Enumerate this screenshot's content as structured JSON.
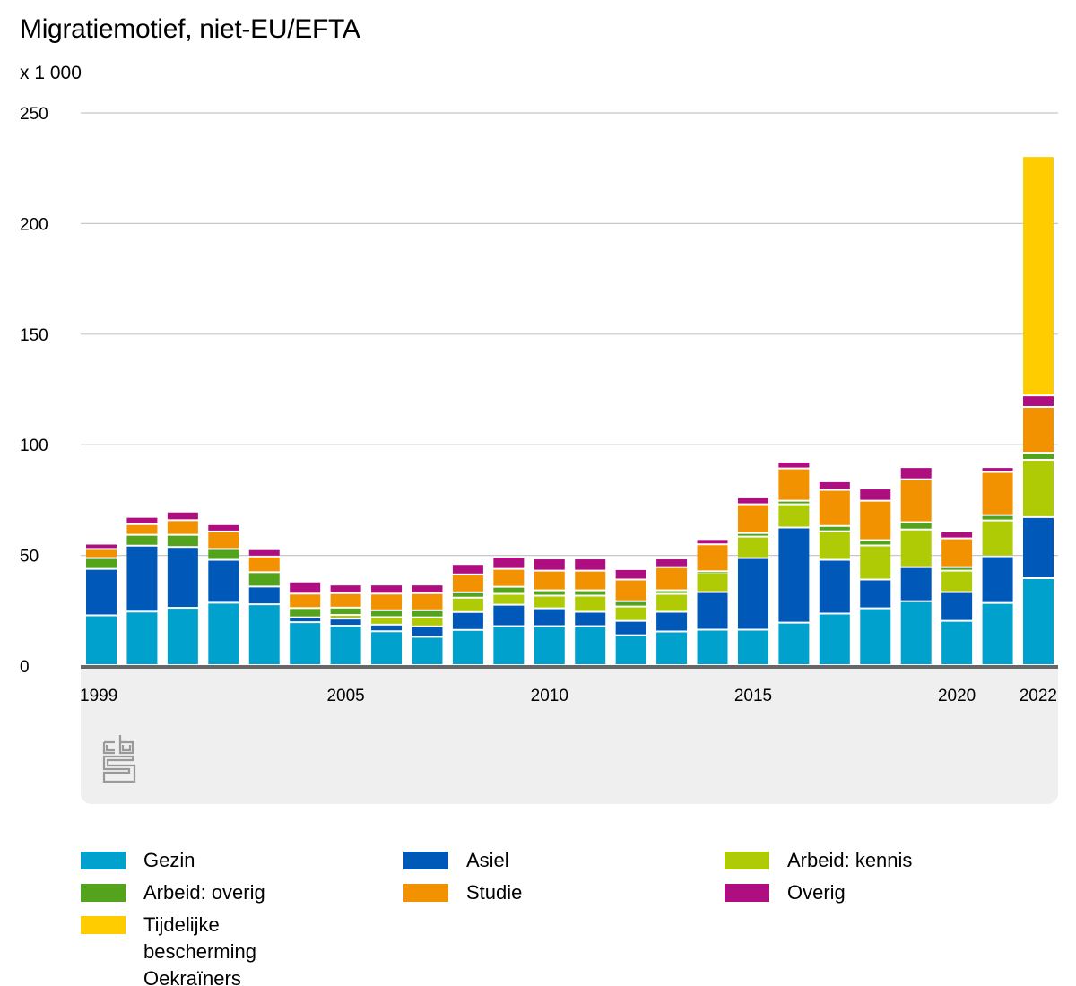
{
  "title": "Migratiemotief, niet-EU/EFTA",
  "unit_label": "x 1 000",
  "logo_text": "cbs",
  "chart_data": {
    "type": "bar",
    "stacked": true,
    "title": "Migratiemotief, niet-EU/EFTA",
    "ylabel": "x 1 000",
    "ylim": [
      0,
      250
    ],
    "yticks": [
      "0",
      "50",
      "100",
      "150",
      "200",
      "250"
    ],
    "grid": true,
    "legend_position": "bottom",
    "x": [
      1999,
      2000,
      2001,
      2002,
      2003,
      2004,
      2005,
      2006,
      2007,
      2008,
      2009,
      2010,
      2011,
      2012,
      2013,
      2014,
      2015,
      2016,
      2017,
      2018,
      2019,
      2020,
      2021,
      2022
    ],
    "xticks": [
      "1999",
      "2005",
      "2010",
      "2015",
      "2020",
      "2022"
    ],
    "series": [
      {
        "name": "Gezin",
        "color": "#00a1cd",
        "values": [
          22.5,
          24.2,
          25.9,
          28.2,
          27.5,
          19.4,
          17.8,
          15.3,
          12.8,
          15.9,
          17.6,
          17.6,
          17.6,
          13.5,
          15.2,
          16.0,
          16.0,
          19.2,
          23.3,
          25.7,
          28.9,
          20.0,
          28.1,
          39.3
        ]
      },
      {
        "name": "Asiel",
        "color": "#0058b8",
        "values": [
          21.0,
          29.8,
          27.5,
          19.4,
          8.0,
          2.2,
          3.2,
          3.0,
          4.7,
          8.1,
          9.7,
          8.1,
          6.5,
          6.5,
          8.9,
          17.0,
          32.4,
          43.0,
          24.3,
          13.0,
          15.4,
          13.0,
          21.1,
          27.6
        ]
      },
      {
        "name": "Arbeid: kennis",
        "color": "#afcb05",
        "values": [
          0,
          0,
          0,
          0,
          0,
          0,
          1.7,
          3.4,
          4.1,
          6.5,
          4.9,
          5.7,
          7.3,
          6.5,
          8.1,
          8.9,
          9.7,
          10.5,
          12.9,
          15.4,
          17.0,
          9.7,
          16.2,
          25.9
        ]
      },
      {
        "name": "Arbeid: overig",
        "color": "#53a31d",
        "values": [
          4.9,
          4.9,
          5.5,
          4.9,
          6.5,
          4.2,
          3.3,
          3.1,
          3.2,
          2.4,
          3.2,
          2.4,
          2.4,
          2.4,
          1.6,
          0.5,
          1.6,
          1.6,
          2.4,
          2.4,
          3.3,
          1.6,
          2.4,
          3.2
        ]
      },
      {
        "name": "Studie",
        "color": "#f39200",
        "values": [
          4.1,
          4.8,
          6.6,
          7.9,
          7.1,
          6.5,
          6.5,
          7.5,
          7.7,
          8.1,
          8.1,
          8.9,
          8.9,
          9.8,
          10.5,
          12.2,
          13.0,
          14.6,
          16.3,
          17.8,
          19.4,
          13.0,
          19.5,
          20.7
        ]
      },
      {
        "name": "Overig",
        "color": "#af0e80",
        "values": [
          2.4,
          3.3,
          3.9,
          3.3,
          3.3,
          5.5,
          3.9,
          4.1,
          3.9,
          4.7,
          5.5,
          5.5,
          5.5,
          4.7,
          3.9,
          2.4,
          3.1,
          3.1,
          3.9,
          5.5,
          5.5,
          3.1,
          2.2,
          5.2
        ]
      },
      {
        "name": "Tijdelijke bescherming Oekraïners",
        "color": "#ffcc00",
        "values": [
          0,
          0,
          0,
          0,
          0,
          0,
          0,
          0,
          0,
          0,
          0,
          0,
          0,
          0,
          0,
          0,
          0,
          0,
          0,
          0,
          0,
          0,
          0,
          108.2
        ]
      }
    ]
  },
  "legend": [
    {
      "label": "Gezin",
      "color": "#00a1cd"
    },
    {
      "label": "Asiel",
      "color": "#0058b8"
    },
    {
      "label": "Arbeid: kennis",
      "color": "#afcb05"
    },
    {
      "label": "Arbeid: overig",
      "color": "#53a31d"
    },
    {
      "label": "Studie",
      "color": "#f39200"
    },
    {
      "label": "Overig",
      "color": "#af0e80"
    },
    {
      "label": "Tijdelijke bescherming Oekraïners",
      "color": "#ffcc00"
    }
  ]
}
